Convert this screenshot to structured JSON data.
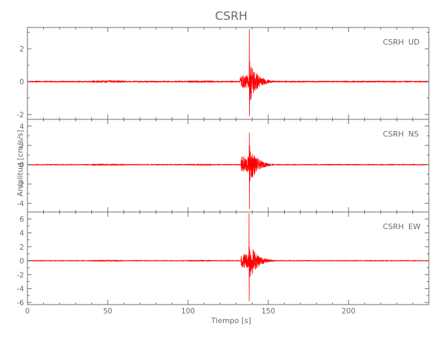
{
  "chart_data": {
    "type": "line",
    "title": "CSRH",
    "xlabel": "Tiempo [s]",
    "ylabel": "Amplitud [cm/s/s]",
    "xlim": [
      0,
      250
    ],
    "xticks": [
      0,
      50,
      100,
      150,
      200
    ],
    "line_color": "#ff0000",
    "axis_color": "#6a6a6a",
    "grid": false,
    "panels": [
      {
        "station": "CSRH",
        "component": "UD",
        "ylim": [
          -2.3,
          3.3
        ],
        "yticks": [
          -2,
          0,
          2
        ],
        "peak_time": 138.2,
        "peak_max": 3.2,
        "peak_min": -2.1,
        "p_arrival": 132.5,
        "noise_level": 0.04
      },
      {
        "station": "CSRH",
        "component": "NS",
        "ylim": [
          -4.9,
          4.7
        ],
        "yticks": [
          -4,
          -2,
          0,
          2,
          4
        ],
        "peak_time": 138.2,
        "peak_max": 3.3,
        "peak_min": -4.6,
        "p_arrival": 133.0,
        "noise_level": 0.05
      },
      {
        "station": "CSRH",
        "component": "EW",
        "ylim": [
          -6.3,
          7.0
        ],
        "yticks": [
          -6,
          -4,
          -2,
          0,
          2,
          4,
          6
        ],
        "peak_time": 138.0,
        "peak_max": 6.8,
        "peak_min": -5.8,
        "p_arrival": 133.0,
        "noise_level": 0.06
      }
    ]
  }
}
